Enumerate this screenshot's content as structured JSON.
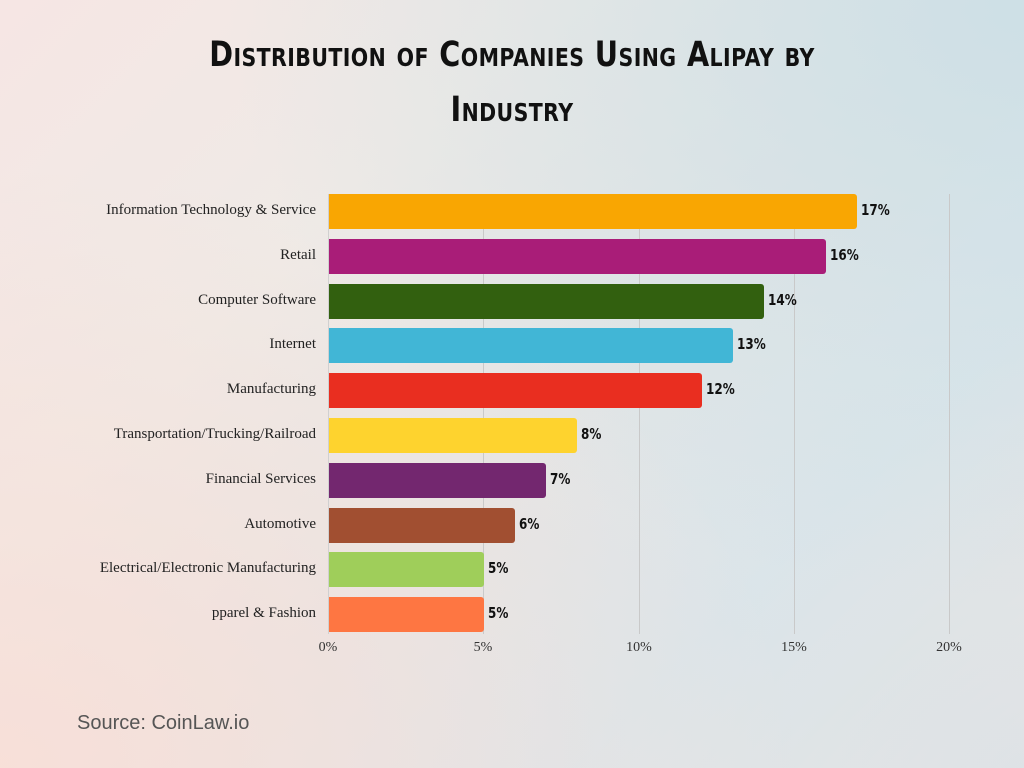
{
  "title": "Distribution of Companies Using Alipay by Industry",
  "title_line1": "Distribution of Companies Using Alipay by",
  "title_line2": "Industry",
  "source": "Source: CoinLaw.io",
  "axis": {
    "ticks": [
      "0%",
      "5%",
      "10%",
      "15%",
      "20%"
    ]
  },
  "rows": [
    {
      "label": "Information Technology & Service",
      "value": 17,
      "display": "17%",
      "color": "#F9A602"
    },
    {
      "label": "Retail",
      "value": 16,
      "display": "16%",
      "color": "#A91D78"
    },
    {
      "label": "Computer Software",
      "value": 14,
      "display": "14%",
      "color": "#32600F"
    },
    {
      "label": "Internet",
      "value": 13,
      "display": "13%",
      "color": "#41B6D6"
    },
    {
      "label": "Manufacturing",
      "value": 12,
      "display": "12%",
      "color": "#E92E20"
    },
    {
      "label": "Transportation/Trucking/Railroad",
      "value": 8,
      "display": "8%",
      "color": "#FED32E"
    },
    {
      "label": "Financial Services",
      "value": 7,
      "display": "7%",
      "color": "#73276F"
    },
    {
      "label": "Automotive",
      "value": 6,
      "display": "6%",
      "color": "#A14F31"
    },
    {
      "label": "Electrical/Electronic Manufacturing",
      "value": 5,
      "display": "5%",
      "color": "#9FCE5A"
    },
    {
      "label": "pparel & Fashion",
      "value": 5,
      "display": "5%",
      "color": "#FE7642"
    }
  ],
  "chart_data": {
    "type": "bar",
    "orientation": "horizontal",
    "title": "Distribution of Companies Using Alipay by Industry",
    "categories": [
      "Information Technology & Service",
      "Retail",
      "Computer Software",
      "Internet",
      "Manufacturing",
      "Transportation/Trucking/Railroad",
      "Financial Services",
      "Automotive",
      "Electrical/Electronic Manufacturing",
      "pparel & Fashion"
    ],
    "values": [
      17,
      16,
      14,
      13,
      12,
      8,
      7,
      6,
      5,
      5
    ],
    "value_labels": [
      "17%",
      "16%",
      "14%",
      "13%",
      "12%",
      "8%",
      "7%",
      "6%",
      "5%",
      "5%"
    ],
    "xlabel": "",
    "ylabel": "",
    "xlim": [
      0,
      20
    ],
    "xticks": [
      "0%",
      "5%",
      "10%",
      "15%",
      "20%"
    ],
    "grid": true,
    "legend": null,
    "annotations": [
      "Source: CoinLaw.io"
    ]
  }
}
